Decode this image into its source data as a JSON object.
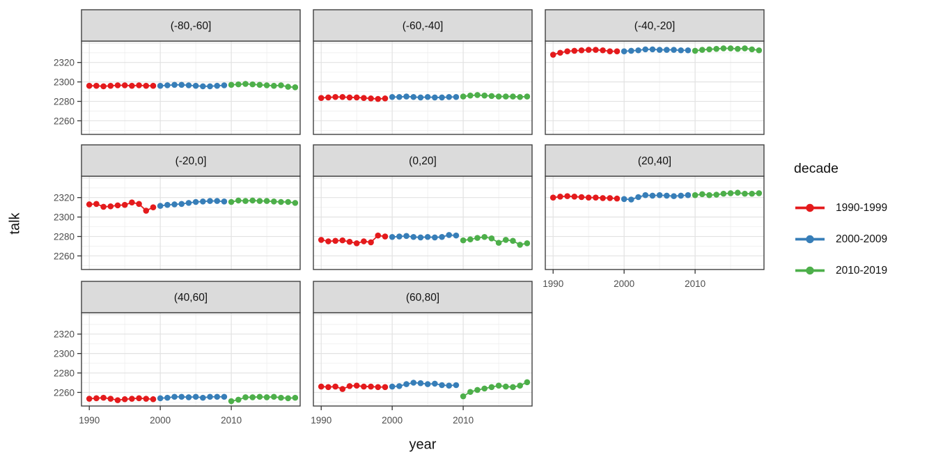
{
  "chart_data": {
    "type": "scatter",
    "title": "",
    "xlabel": "year",
    "ylabel": "talk",
    "grid": "major+minor",
    "legend": {
      "title": "decade",
      "position": "right"
    },
    "xlim": [
      1988.9,
      2019.7
    ],
    "ylim": [
      2246,
      2342
    ],
    "x_ticks": [
      1990,
      2000,
      2010
    ],
    "y_ticks": [
      2320,
      2300,
      2280,
      2260
    ],
    "x_grid_major": [
      1990,
      2000,
      2010
    ],
    "x_grid_minor": [
      1995,
      2005,
      2015
    ],
    "y_grid_major": [
      2260,
      2280,
      2300,
      2320,
      2340
    ],
    "y_grid_minor": [
      2250,
      2270,
      2290,
      2310,
      2330
    ],
    "years": [
      1990,
      1991,
      1992,
      1993,
      1994,
      1995,
      1996,
      1997,
      1998,
      1999,
      2000,
      2001,
      2002,
      2003,
      2004,
      2005,
      2006,
      2007,
      2008,
      2009,
      2010,
      2011,
      2012,
      2013,
      2014,
      2015,
      2016,
      2017,
      2018,
      2019
    ],
    "decades": [
      {
        "label": "1990-1999",
        "color": "#E41A1C",
        "from": 1990,
        "to": 1999
      },
      {
        "label": "2000-2009",
        "color": "#377EB8",
        "from": 2000,
        "to": 2009
      },
      {
        "label": "2010-2019",
        "color": "#4DAF4A",
        "from": 2010,
        "to": 2019
      }
    ],
    "facets": [
      {
        "label": "(-80,-60]",
        "values": [
          2296,
          2296,
          2295.5,
          2296,
          2296.5,
          2296.5,
          2296,
          2296.5,
          2296,
          2296,
          2296,
          2296.5,
          2297,
          2297,
          2296.5,
          2296,
          2295.5,
          2295.5,
          2296,
          2296.5,
          2297,
          2297.5,
          2298,
          2297.5,
          2297,
          2296.5,
          2296,
          2296.5,
          2295,
          2294.5
        ]
      },
      {
        "label": "(-60,-40]",
        "values": [
          2283.5,
          2284,
          2284.5,
          2284.5,
          2284,
          2284,
          2283.5,
          2283,
          2282.5,
          2283,
          2284.5,
          2284.5,
          2285,
          2284.5,
          2284,
          2284.5,
          2284,
          2284,
          2284.5,
          2284.5,
          2285,
          2286,
          2286.5,
          2286,
          2285.5,
          2285,
          2285,
          2285,
          2284.5,
          2285
        ]
      },
      {
        "label": "(-40,-20]",
        "values": [
          2328,
          2330,
          2331.5,
          2332,
          2332.5,
          2333,
          2333,
          2332.5,
          2331.5,
          2331.5,
          2331.5,
          2332,
          2332.5,
          2333.5,
          2333.5,
          2333,
          2333,
          2333,
          2332.5,
          2332.5,
          2332,
          2333,
          2333.5,
          2334,
          2334.5,
          2334.5,
          2334,
          2334.5,
          2333.5,
          2332.5
        ]
      },
      {
        "label": "(-20,0]",
        "values": [
          2313,
          2313.5,
          2310.5,
          2311,
          2312,
          2312.5,
          2315,
          2313.5,
          2306.5,
          2310,
          2311.5,
          2312.5,
          2313,
          2313.5,
          2314.5,
          2315.5,
          2316,
          2316.5,
          2316.5,
          2316,
          2315.5,
          2317,
          2316.5,
          2317,
          2316.5,
          2316.5,
          2316,
          2315.5,
          2315.5,
          2314.5
        ]
      },
      {
        "label": "(0,20]",
        "values": [
          2276.5,
          2275,
          2275.5,
          2276,
          2274.5,
          2273,
          2275,
          2274,
          2281,
          2280,
          2279.5,
          2280,
          2280.5,
          2279.5,
          2279,
          2279.5,
          2279,
          2279.5,
          2281.5,
          2281,
          2276,
          2277,
          2278.5,
          2279.5,
          2278,
          2273.5,
          2276.5,
          2275.5,
          2271.5,
          2273
        ]
      },
      {
        "label": "(20,40]",
        "values": [
          2320,
          2321,
          2321.5,
          2321,
          2320.5,
          2320,
          2320,
          2319.5,
          2319.5,
          2319,
          2318.5,
          2318,
          2320.5,
          2322.5,
          2322,
          2322.5,
          2322,
          2321.5,
          2322,
          2322.5,
          2322.5,
          2323.5,
          2322.5,
          2323,
          2324,
          2324.5,
          2325,
          2324,
          2324,
          2324.5
        ]
      },
      {
        "label": "(40,60]",
        "values": [
          2253.5,
          2254,
          2254.5,
          2253.5,
          2252,
          2253,
          2253.5,
          2254,
          2253.5,
          2253,
          2254,
          2254.5,
          2255.5,
          2255.5,
          2255,
          2255.5,
          2254.5,
          2255.5,
          2255.5,
          2255.5,
          2251,
          2252.5,
          2255,
          2255,
          2255.5,
          2255,
          2255.5,
          2254.5,
          2254,
          2254.5
        ]
      },
      {
        "label": "(60,80]",
        "values": [
          2266,
          2265.5,
          2266,
          2263.5,
          2266.5,
          2267,
          2266,
          2266,
          2265.5,
          2265.5,
          2266,
          2266.5,
          2268.5,
          2270,
          2269.5,
          2268.5,
          2269,
          2267.5,
          2267,
          2267.5,
          2256,
          2260.5,
          2262.5,
          2264,
          2265.5,
          2267,
          2266,
          2265.5,
          2267,
          2270.5
        ]
      }
    ],
    "colors": {
      "strip_bg": "#DBDBDB",
      "panel_bg": "#FFFFFF",
      "panel_border": "#404040",
      "grid_major": "#E2E2E2",
      "grid_minor": "#F0F0F0",
      "tick_mark": "#333333",
      "tick_label": "#4D4D4D",
      "text": "#111111"
    }
  }
}
